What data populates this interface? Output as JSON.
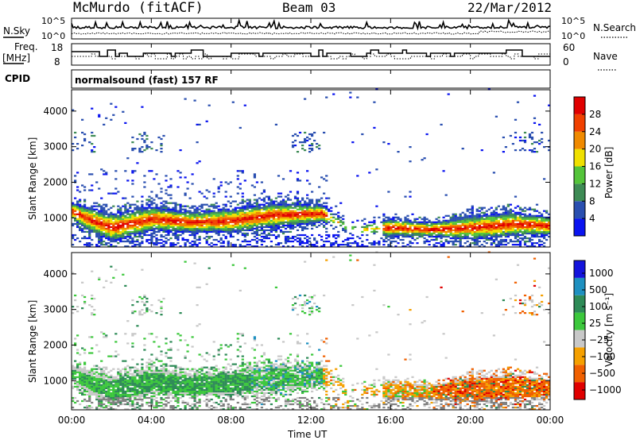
{
  "header": {
    "station": "McMurdo (fitACF)",
    "beam": "Beam 03",
    "date": "22/Mar/2012"
  },
  "noise_panel": {
    "left_label": "N.Sky",
    "right_label": "N.Search",
    "left_ticks": [
      "10^5",
      "10^0"
    ],
    "right_ticks": [
      "10^5",
      "10^0"
    ]
  },
  "freq_panel": {
    "left_label_line1": "Freq.",
    "left_label_line2": "[MHz]",
    "left_ticks": [
      "18",
      "8"
    ],
    "right_label": "Nave",
    "right_ticks": [
      "60",
      "0"
    ]
  },
  "cpid_panel": {
    "label": "CPID",
    "program": "normalsound (fast) 157 RF"
  },
  "colors": {
    "power": [
      "#0a14f0",
      "#2a4fb0",
      "#3e8b55",
      "#54c43a",
      "#f0e000",
      "#f08a00",
      "#f04000",
      "#e00000"
    ],
    "velocity": [
      "#e00000",
      "#f06000",
      "#f5a000",
      "#c8c8c8",
      "#3cc83c",
      "#2e8b57",
      "#1e90c0",
      "#1414dc"
    ],
    "ground_scatter": "#808080"
  },
  "chart_data": [
    {
      "type": "heatmap",
      "quantity": "power",
      "ylabel": "Slant Range [km]",
      "xlabel": "Time UT",
      "xlim": [
        0,
        24
      ],
      "ylim": [
        180,
        4600
      ],
      "x_ticks": [
        "00:00",
        "04:00",
        "08:00",
        "12:00",
        "16:00",
        "20:00",
        "00:00"
      ],
      "y_ticks": [
        1000,
        2000,
        3000,
        4000
      ],
      "colorbar": {
        "label": "Power [dB]",
        "range": [
          0,
          32
        ],
        "ticks": [
          4,
          8,
          12,
          16,
          20,
          24,
          28
        ]
      },
      "main_echo_band_km": [
        {
          "t": 0,
          "center": 1150,
          "width": 500
        },
        {
          "t": 1,
          "center": 900,
          "width": 700
        },
        {
          "t": 2,
          "center": 700,
          "width": 800
        },
        {
          "t": 4,
          "center": 950,
          "width": 700
        },
        {
          "t": 6,
          "center": 850,
          "width": 600
        },
        {
          "t": 8,
          "center": 900,
          "width": 700
        },
        {
          "t": 10,
          "center": 1050,
          "width": 700
        },
        {
          "t": 12.5,
          "center": 1100,
          "width": 500
        },
        {
          "t": 14,
          "center": 650,
          "width": 300
        },
        {
          "t": 16,
          "center": 700,
          "width": 500
        },
        {
          "t": 18,
          "center": 650,
          "width": 400
        },
        {
          "t": 20,
          "center": 700,
          "width": 700
        },
        {
          "t": 22,
          "center": 800,
          "width": 700
        },
        {
          "t": 24,
          "center": 750,
          "width": 500
        }
      ]
    },
    {
      "type": "heatmap",
      "quantity": "velocity",
      "ylabel": "Slant Range [km]",
      "xlabel": "Time UT",
      "xlim": [
        0,
        24
      ],
      "ylim": [
        180,
        4600
      ],
      "x_ticks": [
        "00:00",
        "04:00",
        "08:00",
        "12:00",
        "16:00",
        "20:00",
        "00:00"
      ],
      "y_ticks": [
        1000,
        2000,
        3000,
        4000
      ],
      "colorbar": {
        "label": "Velocity [m s⁻¹]",
        "levels": [
          "1000",
          "500",
          "100",
          "25",
          "−25",
          "−100",
          "−500",
          "−1000"
        ]
      }
    }
  ]
}
